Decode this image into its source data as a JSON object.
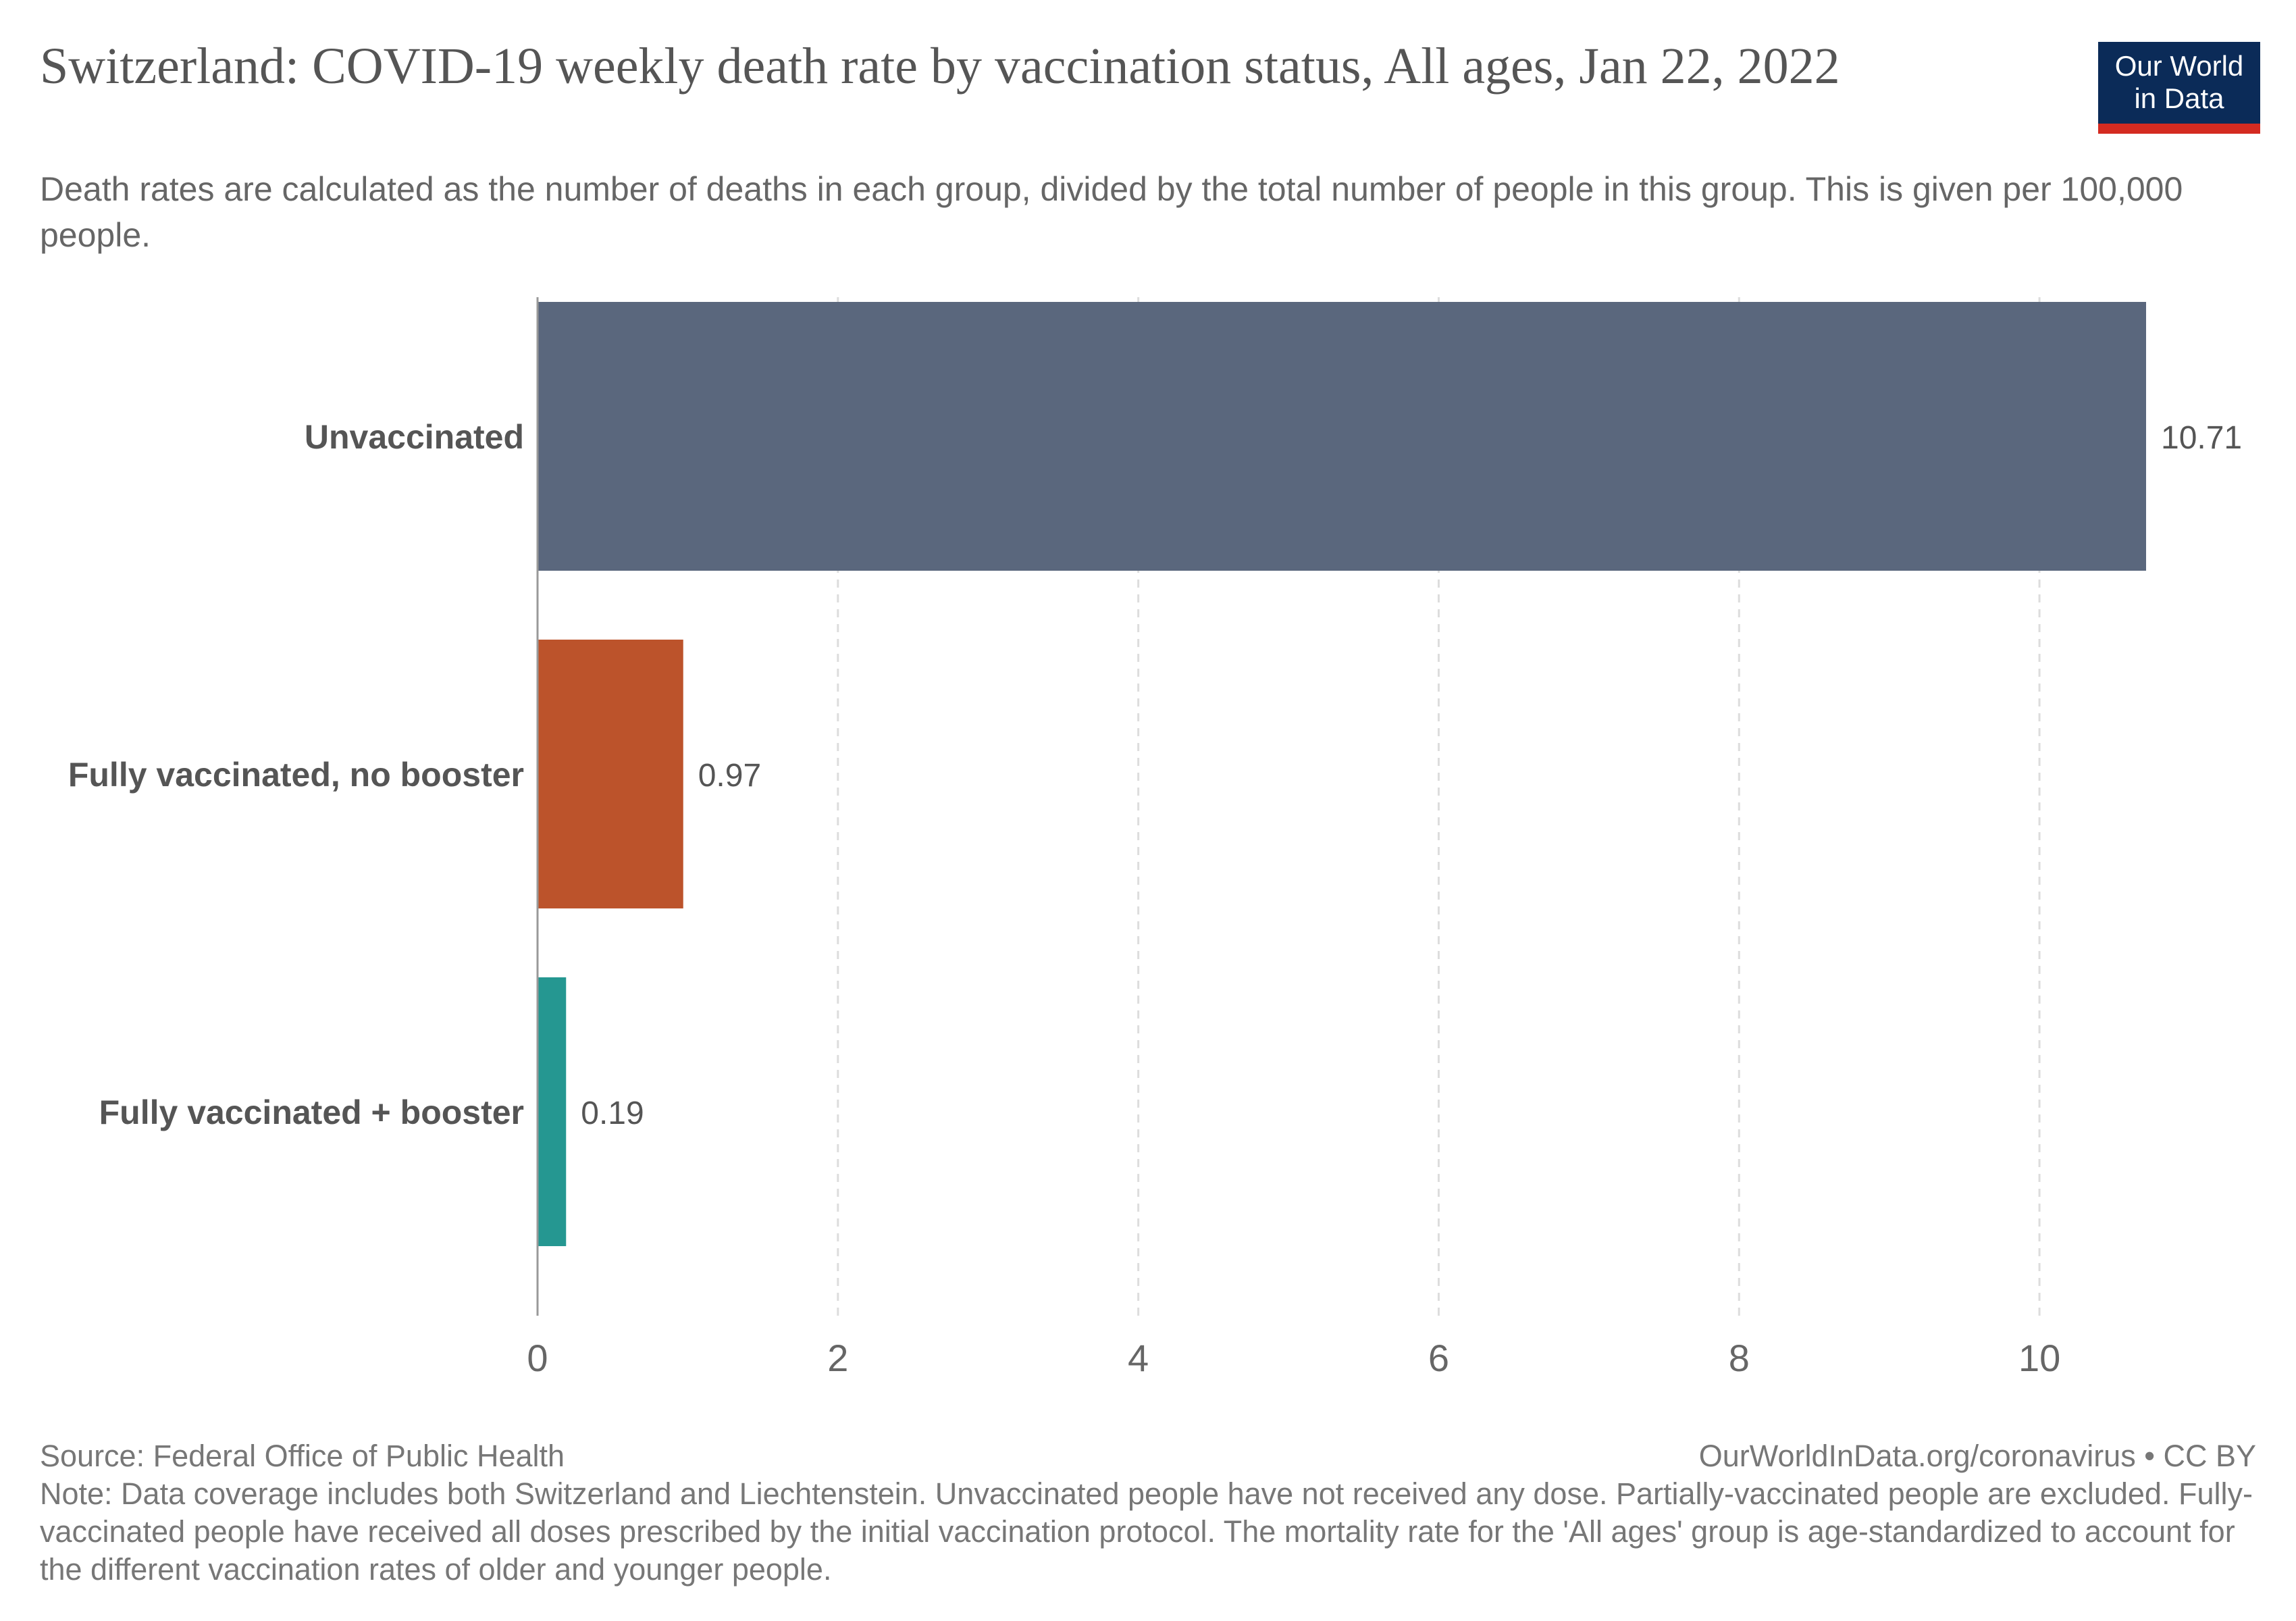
{
  "header": {
    "title": "Switzerland: COVID-19 weekly death rate by vaccination status, All ages, Jan 22, 2022",
    "subtitle": "Death rates are calculated as the number of deaths in each group, divided by the total number of people in this group. This is given per 100,000 people.",
    "logo_line1": "Our World",
    "logo_line2": "in Data"
  },
  "footer": {
    "source": "Source: Federal Office of Public Health",
    "credit": "OurWorldInData.org/coronavirus • CC BY",
    "note": "Note: Data coverage includes both Switzerland and Liechtenstein. Unvaccinated people have not received any dose. Partially-vaccinated people are excluded. Fully-vaccinated people have received all doses prescribed by the initial vaccination protocol. The mortality rate for the 'All ages' group is age-standardized to account for the different vaccination rates of older and younger people."
  },
  "colors": {
    "brand_bg": "#0b2b58",
    "brand_accent": "#d42b21"
  },
  "chart_data": {
    "type": "bar",
    "orientation": "horizontal",
    "title": "Switzerland: COVID-19 weekly death rate by vaccination status, All ages, Jan 22, 2022",
    "categories": [
      "Unvaccinated",
      "Fully vaccinated, no booster",
      "Fully vaccinated + booster"
    ],
    "values": [
      10.71,
      0.97,
      0.19
    ],
    "value_labels": [
      "10.71",
      "0.97",
      "0.19"
    ],
    "colors": [
      "#5a677d",
      "#bc532b",
      "#259791"
    ],
    "xlim": [
      0,
      10.71
    ],
    "xticks": [
      0,
      2,
      4,
      6,
      8,
      10
    ],
    "xtick_labels": [
      "0",
      "2",
      "4",
      "6",
      "8",
      "10"
    ],
    "grid": "vertical-dashed",
    "legend": "none"
  }
}
